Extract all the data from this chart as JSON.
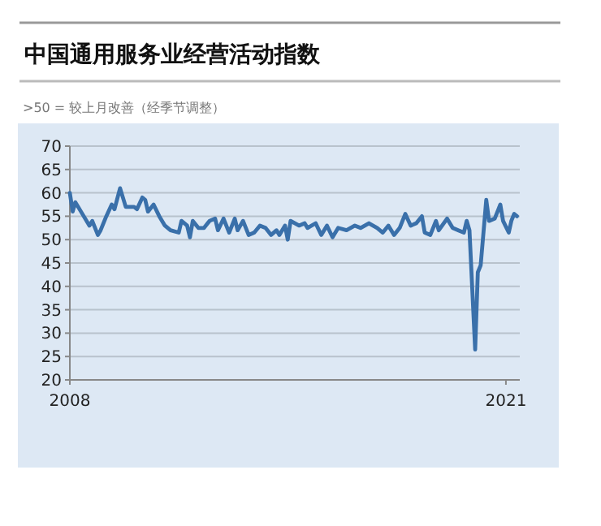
{
  "chart_data": {
    "type": "line",
    "title": "中国通用服务业经营活动指数",
    "subtitle": ">50 = 较上月改善（经季节调整）",
    "x": [
      "2008-01",
      "2008-02",
      "2008-03",
      "2008-05",
      "2008-08",
      "2008-09",
      "2008-11",
      "2008-12",
      "2009-02",
      "2009-04",
      "2009-05",
      "2009-07",
      "2009-09",
      "2009-12",
      "2010-01",
      "2010-03",
      "2010-04",
      "2010-05",
      "2010-07",
      "2010-09",
      "2010-11",
      "2011-01",
      "2011-04",
      "2011-05",
      "2011-07",
      "2011-08",
      "2011-09",
      "2011-11",
      "2012-01",
      "2012-03",
      "2012-05",
      "2012-06",
      "2012-08",
      "2012-10",
      "2012-12",
      "2013-01",
      "2013-03",
      "2013-05",
      "2013-07",
      "2013-09",
      "2013-11",
      "2014-01",
      "2014-03",
      "2014-04",
      "2014-06",
      "2014-07",
      "2014-08",
      "2014-11",
      "2015-01",
      "2015-02",
      "2015-05",
      "2015-07",
      "2015-09",
      "2015-11",
      "2016-01",
      "2016-04",
      "2016-07",
      "2016-09",
      "2016-12",
      "2017-03",
      "2017-05",
      "2017-07",
      "2017-09",
      "2017-11",
      "2018-01",
      "2018-03",
      "2018-05",
      "2018-07",
      "2018-08",
      "2018-10",
      "2018-12",
      "2019-01",
      "2019-04",
      "2019-06",
      "2019-08",
      "2019-10",
      "2019-11",
      "2019-12",
      "2020-02",
      "2020-03",
      "2020-04",
      "2020-06",
      "2020-07",
      "2020-09",
      "2020-11",
      "2020-12",
      "2021-02",
      "2021-03",
      "2021-04",
      "2021-05"
    ],
    "series": [
      {
        "color": "#3a70aa",
        "values": [
          60,
          56,
          58,
          56,
          53,
          54,
          51,
          52,
          55,
          57.5,
          56.5,
          61,
          57,
          57,
          56.5,
          59,
          58.5,
          56,
          57.5,
          55,
          53,
          52,
          51.5,
          54,
          53,
          50.5,
          54,
          52.5,
          52.5,
          54,
          54.5,
          52,
          54.5,
          51.5,
          54.5,
          52,
          54,
          51,
          51.5,
          53,
          52.5,
          51,
          52,
          51,
          53,
          50,
          54,
          53,
          53.5,
          52.5,
          53.5,
          51,
          53,
          50.5,
          52.5,
          52,
          53,
          52.5,
          53.5,
          52.5,
          51.5,
          53,
          51,
          52.5,
          55.5,
          53,
          53.5,
          55,
          51.5,
          51,
          54,
          52,
          54.5,
          52.5,
          52,
          51.5,
          54,
          52,
          26.5,
          43,
          44.5,
          58.5,
          54,
          54.5,
          57.5,
          54,
          51.5,
          54,
          55.5,
          55
        ]
      }
    ],
    "xlim": [
      "2008-01",
      "2021-06"
    ],
    "xticks": [
      {
        "value": "2008-01",
        "label": "2008"
      },
      {
        "value": "2021-01",
        "label": "2021"
      }
    ],
    "ylim": [
      20,
      70
    ],
    "yticks": [
      20,
      25,
      30,
      35,
      40,
      45,
      50,
      55,
      60,
      65,
      70
    ],
    "grid": "y",
    "line_style": "solid",
    "marker": "none"
  }
}
